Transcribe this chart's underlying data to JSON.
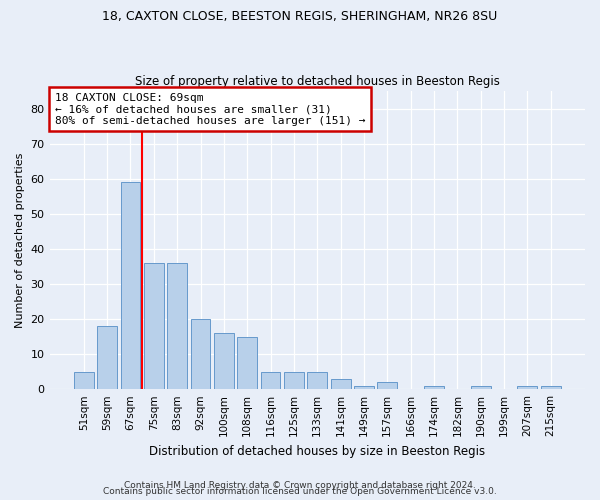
{
  "title_line1": "18, CAXTON CLOSE, BEESTON REGIS, SHERINGHAM, NR26 8SU",
  "title_line2": "Size of property relative to detached houses in Beeston Regis",
  "xlabel": "Distribution of detached houses by size in Beeston Regis",
  "ylabel": "Number of detached properties",
  "categories": [
    "51sqm",
    "59sqm",
    "67sqm",
    "75sqm",
    "83sqm",
    "92sqm",
    "100sqm",
    "108sqm",
    "116sqm",
    "125sqm",
    "133sqm",
    "141sqm",
    "149sqm",
    "157sqm",
    "166sqm",
    "174sqm",
    "182sqm",
    "190sqm",
    "199sqm",
    "207sqm",
    "215sqm"
  ],
  "values": [
    5,
    18,
    59,
    36,
    36,
    20,
    16,
    15,
    5,
    5,
    5,
    3,
    1,
    2,
    0,
    1,
    0,
    1,
    0,
    1,
    1
  ],
  "bar_color": "#b8d0ea",
  "bar_edgecolor": "#6699cc",
  "red_line_x": 2.5,
  "annotation_text": "18 CAXTON CLOSE: 69sqm\n← 16% of detached houses are smaller (31)\n80% of semi-detached houses are larger (151) →",
  "annotation_box_color": "white",
  "annotation_box_edgecolor": "#cc0000",
  "ylim": [
    0,
    85
  ],
  "yticks": [
    0,
    10,
    20,
    30,
    40,
    50,
    60,
    70,
    80
  ],
  "footer_line1": "Contains HM Land Registry data © Crown copyright and database right 2024.",
  "footer_line2": "Contains public sector information licensed under the Open Government Licence v3.0.",
  "bg_color": "#e8eef8",
  "plot_bg_color": "#e8eef8"
}
